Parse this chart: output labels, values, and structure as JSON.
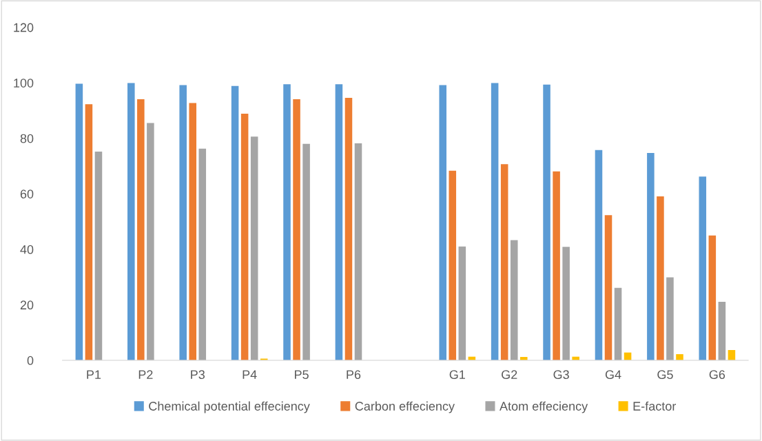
{
  "chart_data": {
    "type": "bar",
    "categories": [
      "P1",
      "P2",
      "P3",
      "P4",
      "P5",
      "P6",
      null,
      "G1",
      "G2",
      "G3",
      "G4",
      "G5",
      "G6"
    ],
    "series": [
      {
        "name": "Chemical potential effeciency",
        "color": "#5b9bd5",
        "values": [
          99.7,
          99.9,
          99.2,
          98.9,
          99.5,
          99.5,
          null,
          99.2,
          99.9,
          99.4,
          75.8,
          74.7,
          66.2
        ]
      },
      {
        "name": "Carbon effeciency",
        "color": "#ed7d31",
        "values": [
          92.3,
          94.1,
          92.7,
          88.9,
          94.1,
          94.6,
          null,
          68.3,
          70.7,
          68.1,
          52.3,
          59.1,
          45
        ]
      },
      {
        "name": "Atom effeciency",
        "color": "#a5a5a5",
        "values": [
          75.2,
          85.5,
          76.3,
          80.6,
          78,
          78.2,
          null,
          41,
          43.3,
          40.9,
          26.1,
          29.9,
          21.1
        ]
      },
      {
        "name": "E-factor",
        "color": "#ffc000",
        "values": [
          null,
          null,
          null,
          0.6,
          null,
          null,
          null,
          1.3,
          1.2,
          1.3,
          2.8,
          2.2,
          3.7
        ]
      }
    ],
    "ylim": [
      0,
      120
    ],
    "yticks": [
      0,
      20,
      40,
      60,
      80,
      100,
      120
    ],
    "grid": false,
    "legend": "bottom"
  }
}
